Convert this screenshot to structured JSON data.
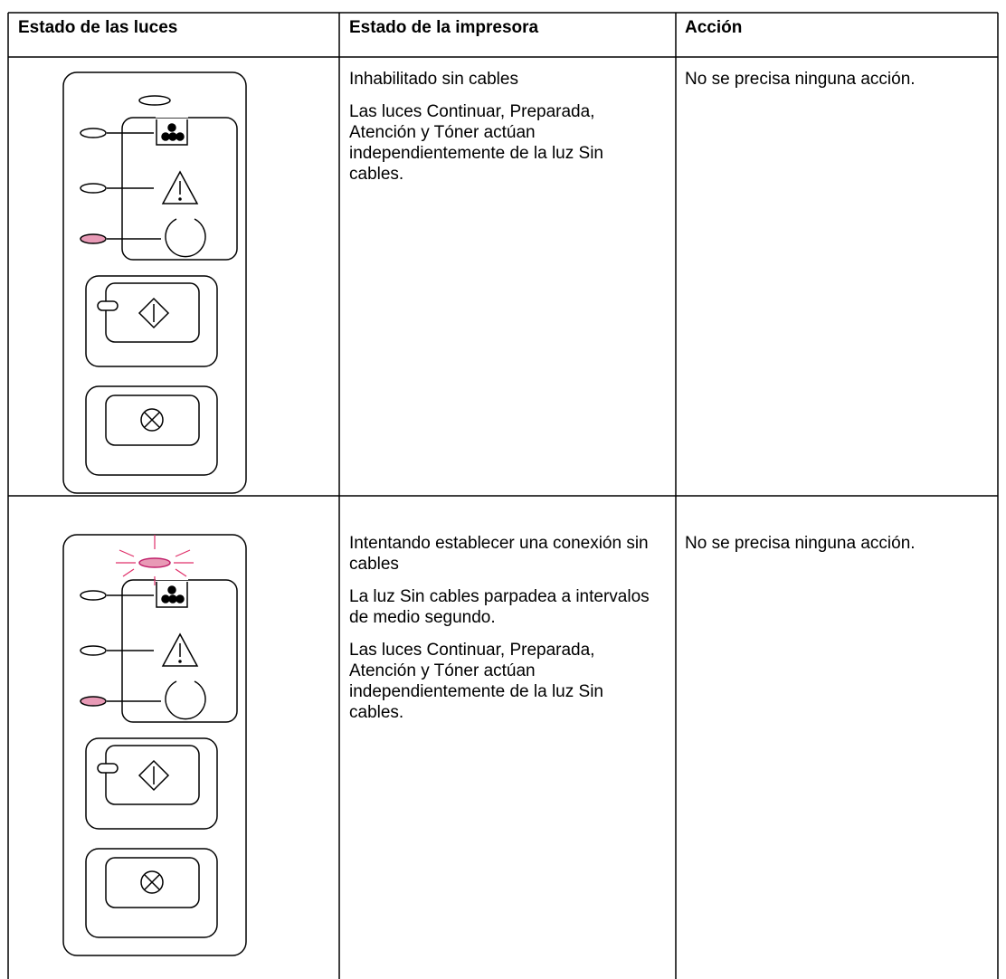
{
  "table": {
    "headers": [
      "Estado de las luces",
      "Estado de la impresora",
      "Acción"
    ],
    "rows": [
      {
        "status": [
          "Inhabilitado sin cables",
          "Las luces Continuar, Preparada, Atención y Tóner actúan independientemente de la luz Sin cables."
        ],
        "action": "No se precisa ninguna acción."
      },
      {
        "status": [
          "Intentando establecer una conexión sin cables",
          "La luz Sin cables parpadea a intervalos de medio segundo.",
          "Las luces Continuar, Preparada, Atención y Tóner actúan independientemente de la luz Sin cables."
        ],
        "action": "No se precisa ninguna acción."
      }
    ]
  }
}
